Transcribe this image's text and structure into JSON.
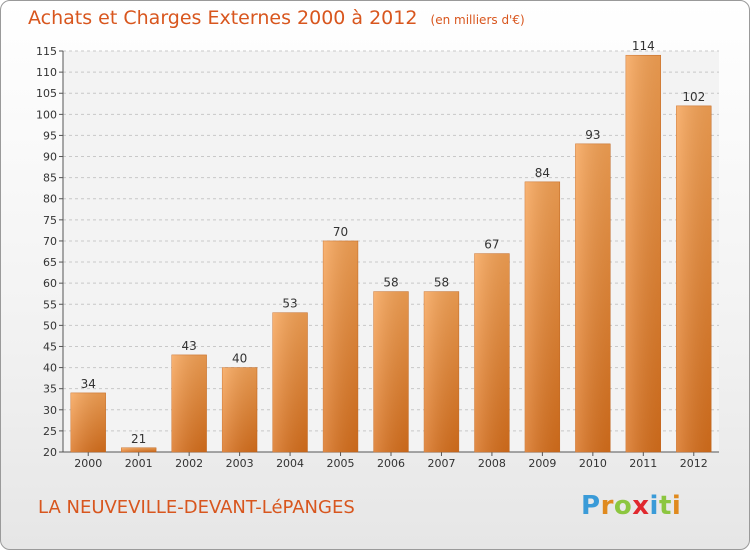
{
  "title": "Achats et Charges Externes 2000 à 2012",
  "unit_note": "(en milliers d'€)",
  "commune": "LA NEUVEVILLE-DEVANT-LéPANGES",
  "logo": {
    "letters": [
      "P",
      "r",
      "o",
      "x",
      "i",
      "t",
      "i"
    ],
    "colors": [
      "#3a9bd8",
      "#e08a1e",
      "#8cc63f",
      "#e0282e",
      "#3a9bd8",
      "#8cc63f",
      "#e08a1e"
    ]
  },
  "chart_data": {
    "type": "bar",
    "categories": [
      "2000",
      "2001",
      "2002",
      "2003",
      "2004",
      "2005",
      "2006",
      "2007",
      "2008",
      "2009",
      "2010",
      "2011",
      "2012"
    ],
    "values": [
      34,
      21,
      43,
      40,
      53,
      70,
      58,
      58,
      67,
      84,
      93,
      114,
      102
    ],
    "ylim": [
      20,
      115
    ],
    "yticks": [
      20,
      25,
      30,
      35,
      40,
      45,
      50,
      55,
      60,
      65,
      70,
      75,
      80,
      85,
      90,
      95,
      100,
      105,
      110,
      115
    ],
    "grid": true,
    "bar_color": "#f08a2c"
  }
}
